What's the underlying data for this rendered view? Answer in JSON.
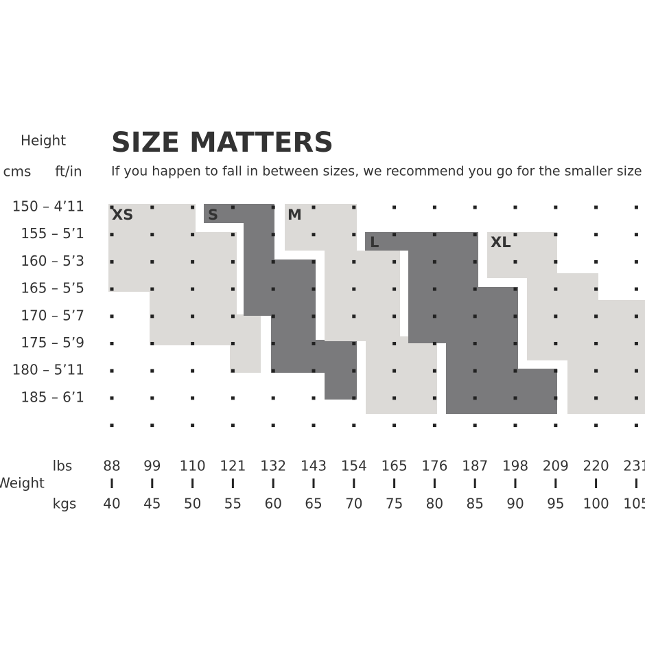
{
  "header": {
    "title": "SIZE MATTERS",
    "subtitle": "If you happen to fall in between sizes, we recommend you go for the smaller size"
  },
  "height": {
    "label": "Height",
    "cms_label": "cms",
    "ftin_label": "ft/in",
    "rows": [
      "150 – 4’11",
      "155 – 5’1",
      "160 – 5’3",
      "165 – 5’5",
      "170 – 5’7",
      "175 – 5’9",
      "180 – 5’11",
      "185 – 6’1"
    ]
  },
  "weight": {
    "label": "Weight",
    "lbs_label": "lbs",
    "kgs_label": "kgs",
    "lbs": [
      88,
      99,
      110,
      121,
      132,
      143,
      154,
      165,
      176,
      187,
      198,
      209,
      220,
      231
    ],
    "kgs": [
      40,
      45,
      50,
      55,
      60,
      65,
      70,
      75,
      80,
      85,
      90,
      95,
      100,
      105
    ]
  },
  "sizes": [
    "XS",
    "S",
    "M",
    "L",
    "XL"
  ]
}
